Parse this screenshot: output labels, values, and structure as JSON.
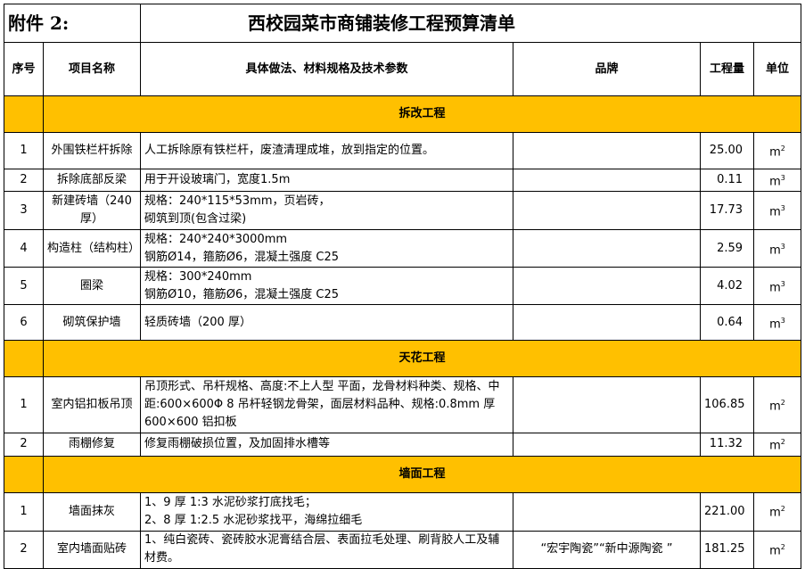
{
  "title": {
    "label": "附件 2:",
    "text": "西校园菜市商铺装修工程预算清单"
  },
  "headers": [
    "序号",
    "项目名称",
    "具体做法、材料规格及技术参数",
    "品牌",
    "工程量",
    "单位"
  ],
  "sections": [
    {
      "name": "拆改工程",
      "rows": [
        {
          "no": "1",
          "name": "外围铁栏杆拆除",
          "desc": "人工拆除原有铁栏杆，废渣清理成堆，放到指定的位置。",
          "brand": "",
          "qty": "25.00",
          "unit": "m",
          "sup": "2"
        },
        {
          "no": "2",
          "name": "拆除底部反梁",
          "desc": "用于开设玻璃门，宽度1.5m",
          "brand": "",
          "qty": "0.11",
          "unit": "m",
          "sup": "3"
        },
        {
          "no": "3",
          "name": "新建砖墙（240厚）",
          "desc": "规格：240*115*53mm，页岩砖，\n砌筑到顶(包含过梁)",
          "brand": "",
          "qty": "17.73",
          "unit": "m",
          "sup": "3"
        },
        {
          "no": "4",
          "name": "构造柱（结构柱）",
          "desc": "规格：240*240*3000mm\n钢筋Ø14，箍筋Ø6，混凝土强度 C25",
          "brand": "",
          "qty": "2.59",
          "unit": "m",
          "sup": "3"
        },
        {
          "no": "5",
          "name": "圈梁",
          "desc": "规格：300*240mm\n钢筋Ø10，箍筋Ø6，混凝土强度 C25",
          "brand": "",
          "qty": "4.02",
          "unit": "m",
          "sup": "3"
        },
        {
          "no": "6",
          "name": "砌筑保护墙",
          "desc": "轻质砖墙（200 厚）",
          "brand": "",
          "qty": "0.64",
          "unit": "m",
          "sup": "3"
        }
      ]
    },
    {
      "name": "天花工程",
      "rows": [
        {
          "no": "1",
          "name": "室内铝扣板吊顶",
          "desc": "吊顶形式、吊杆规格、高度:不上人型 平面，龙骨材料种类、规格、中距:600×600Φ 8 吊杆轻钢龙骨架，面层材料品种、规格:0.8mm 厚 600×600 铝扣板",
          "brand": "",
          "qty": "106.85",
          "unit": "m",
          "sup": "2"
        },
        {
          "no": "2",
          "name": "雨棚修复",
          "desc": "修复雨棚破损位置，及加固排水槽等",
          "brand": "",
          "qty": "11.32",
          "unit": "m",
          "sup": "2"
        }
      ]
    },
    {
      "name": "墙面工程",
      "rows": [
        {
          "no": "1",
          "name": "墙面抹灰",
          "desc": "1、9 厚 1:3 水泥砂浆打底找毛；\n2、8 厚 1:2.5 水泥砂浆找平，海绵拉细毛",
          "brand": "",
          "qty": "221.00",
          "unit": "m",
          "sup": "2"
        },
        {
          "no": "2",
          "name": "室内墙面贴砖",
          "desc": "1、纯白瓷砖、瓷砖胶水泥膏结合层、表面拉毛处理、刷背胶人工及辅材费。",
          "brand": "“宏宇陶瓷”“新中源陶瓷 ”",
          "qty": "181.25",
          "unit": "m",
          "sup": "2"
        }
      ]
    }
  ],
  "colors": {
    "section_bg": "#ffc000"
  }
}
